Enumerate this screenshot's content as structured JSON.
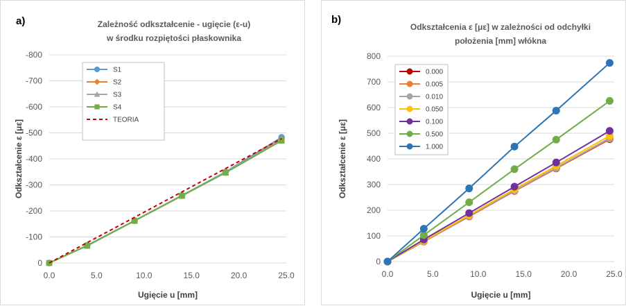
{
  "chart_data": [
    {
      "type": "line",
      "panel_label": "a)",
      "title_line1": "Zależność odkształcenie - ugięcie (ε-u)",
      "title_line2": "w środku rozpiętości płaskownika",
      "xlabel": "Ugięcie u [mm]",
      "ylabel": "Odkształcenie ε [με]",
      "xlim": [
        0,
        25
      ],
      "ylim": [
        0,
        -800
      ],
      "y_inverted": true,
      "xticks": [
        "0.0",
        "5.0",
        "10.0",
        "15.0",
        "20.0",
        "25.0"
      ],
      "yticks": [
        "0",
        "-100",
        "-200",
        "-300",
        "-400",
        "-500",
        "-600",
        "-700",
        "-800"
      ],
      "grid": true,
      "legend_position": "top-left",
      "series": [
        {
          "name": "S1",
          "color": "#5b9bd5",
          "marker": "circle",
          "dash": "",
          "x": [
            0,
            4.0,
            9.0,
            14.0,
            18.6,
            24.5
          ],
          "y": [
            0,
            -68,
            -163,
            -260,
            -350,
            -483
          ]
        },
        {
          "name": "S2",
          "color": "#ed7d31",
          "marker": "diamond",
          "dash": "",
          "x": [
            0,
            4.0,
            9.0,
            14.0,
            18.6,
            24.5
          ],
          "y": [
            0,
            -67,
            -162,
            -259,
            -348,
            -475
          ]
        },
        {
          "name": "S3",
          "color": "#a5a5a5",
          "marker": "triangle",
          "dash": "",
          "x": [
            0,
            4.0,
            9.0,
            14.0,
            18.6,
            24.5
          ],
          "y": [
            0,
            -67,
            -162,
            -259,
            -348,
            -473
          ]
        },
        {
          "name": "S4",
          "color": "#70ad47",
          "marker": "square",
          "dash": "",
          "x": [
            0,
            4.0,
            9.0,
            14.0,
            18.6,
            24.5
          ],
          "y": [
            0,
            -66,
            -162,
            -258,
            -347,
            -470
          ]
        },
        {
          "name": "TEORIA",
          "color": "#c00000",
          "marker": "none",
          "dash": "5,4",
          "x": [
            0,
            24.5
          ],
          "y": [
            0,
            -478
          ]
        }
      ]
    },
    {
      "type": "line",
      "panel_label": "b)",
      "title_line1": "Odkształcenia ε [με] w zależności od odchyłki",
      "title_line2": "położenia [mm] włókna",
      "xlabel": "Ugięcie u [mm]",
      "ylabel": "Odkształcenie ε [με]",
      "xlim": [
        0,
        25
      ],
      "ylim": [
        0,
        800
      ],
      "y_inverted": false,
      "xticks": [
        "0.0",
        "5.0",
        "10.0",
        "15.0",
        "20.0",
        "25.0"
      ],
      "yticks": [
        "0",
        "100",
        "200",
        "300",
        "400",
        "500",
        "600",
        "700",
        "800"
      ],
      "grid": true,
      "legend_position": "top-left",
      "series": [
        {
          "name": "0.000",
          "color": "#c00000",
          "marker": "circle",
          "dash": "",
          "x": [
            0,
            4.0,
            9.0,
            14.0,
            18.6,
            24.5
          ],
          "y": [
            0,
            78,
            176,
            275,
            363,
            477
          ]
        },
        {
          "name": "0.005",
          "color": "#ed7d31",
          "marker": "circle",
          "dash": "",
          "x": [
            0,
            4.0,
            9.0,
            14.0,
            18.6,
            24.5
          ],
          "y": [
            0,
            79,
            177,
            276,
            364,
            479
          ]
        },
        {
          "name": "0.010",
          "color": "#a5a5a5",
          "marker": "circle",
          "dash": "",
          "x": [
            0,
            4.0,
            9.0,
            14.0,
            18.6,
            24.5
          ],
          "y": [
            0,
            79,
            178,
            277,
            366,
            481
          ]
        },
        {
          "name": "0.050",
          "color": "#ffc000",
          "marker": "circle",
          "dash": "",
          "x": [
            0,
            4.0,
            9.0,
            14.0,
            18.6,
            24.5
          ],
          "y": [
            0,
            81,
            181,
            282,
            373,
            490
          ]
        },
        {
          "name": "0.100",
          "color": "#7030a0",
          "marker": "circle",
          "dash": "",
          "x": [
            0,
            4.0,
            9.0,
            14.0,
            18.6,
            24.5
          ],
          "y": [
            0,
            86,
            189,
            292,
            386,
            509
          ]
        },
        {
          "name": "0.500",
          "color": "#70ad47",
          "marker": "circle",
          "dash": "",
          "x": [
            0,
            4.0,
            9.0,
            14.0,
            18.6,
            24.5
          ],
          "y": [
            0,
            103,
            231,
            360,
            475,
            626
          ]
        },
        {
          "name": "1.000",
          "color": "#2e75b6",
          "marker": "circle",
          "dash": "",
          "x": [
            0,
            4.0,
            9.0,
            14.0,
            18.6,
            24.5
          ],
          "y": [
            0,
            128,
            285,
            448,
            588,
            774
          ]
        }
      ]
    }
  ]
}
